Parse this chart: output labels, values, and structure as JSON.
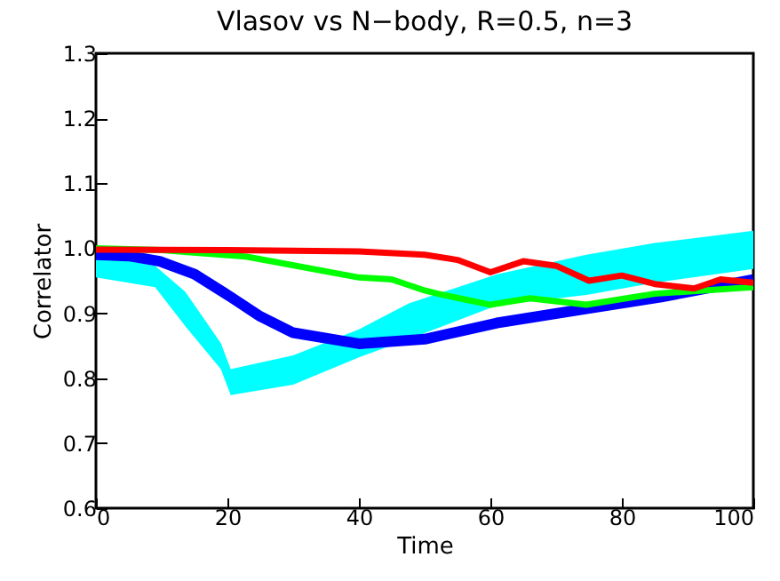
{
  "chart_data": {
    "type": "line",
    "title": "Vlasov vs N−body, R=0.5, n=3",
    "xlabel": "Time",
    "ylabel": "Correlator",
    "xlim": [
      0,
      100
    ],
    "xticks": [
      0,
      20,
      40,
      60,
      80,
      100
    ],
    "ylim": [
      0.6,
      1.3
    ],
    "yticks": [
      0.6,
      0.7,
      0.8,
      0.9,
      {
        "value": 1,
        "label": "1.0"
      },
      1.1,
      1.2,
      1.3
    ],
    "grid": false,
    "series": [
      {
        "type": "line",
        "color": "#00ffff",
        "x": [
          0,
          9,
          13.6,
          19,
          20.5,
          30,
          40,
          47.6,
          61,
          74.6,
          85,
          100
        ],
        "values": [
          null,
          null,
          null,
          null,
          null,
          null,
          null,
          null,
          null,
          null,
          null,
          null
        ],
        "lower": [
          0.955,
          0.94,
          0.88,
          0.814,
          0.774,
          0.79,
          0.832,
          0.86,
          0.912,
          0.928,
          0.947,
          0.968
        ],
        "upper": [
          0.99,
          0.973,
          0.933,
          0.854,
          0.814,
          0.835,
          0.875,
          0.915,
          0.96,
          0.99,
          1.008,
          1.027
        ]
      },
      {
        "color": "#0000ff",
        "x": [
          0,
          5,
          9.7,
          15,
          20.5,
          25,
          30,
          40,
          50,
          61,
          74.6,
          86,
          100
        ],
        "values": [
          0.99,
          0.988,
          0.98,
          0.96,
          0.925,
          0.895,
          0.87,
          0.853,
          0.86,
          0.885,
          0.907,
          0.925,
          0.952
        ]
      },
      {
        "color": "#00ff00",
        "x": [
          0,
          10,
          23,
          40,
          45,
          50,
          52,
          60,
          66,
          74.6,
          85,
          100
        ],
        "values": [
          1.0,
          0.997,
          0.987,
          0.955,
          0.952,
          0.935,
          0.93,
          0.913,
          0.923,
          0.913,
          0.93,
          0.94
        ]
      },
      {
        "color": "#ff0000",
        "x": [
          0,
          20,
          40,
          50,
          55,
          60,
          65,
          70,
          75,
          80,
          85,
          91,
          95,
          100
        ],
        "values": [
          0.998,
          0.997,
          0.995,
          0.99,
          0.982,
          0.963,
          0.98,
          0.973,
          0.95,
          0.958,
          0.945,
          0.938,
          0.952,
          0.947
        ]
      }
    ]
  }
}
